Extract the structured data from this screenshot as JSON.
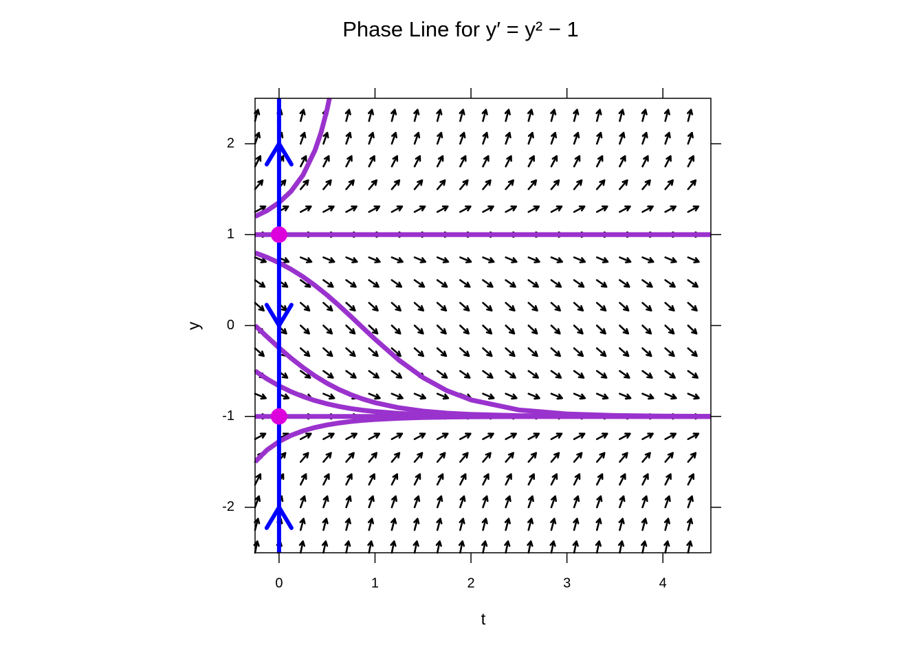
{
  "chart_data": {
    "type": "phase_portrait",
    "title": "Phase Line for y′ = y² − 1",
    "x_label": "t",
    "y_label": "y",
    "xlim": [
      -0.25,
      4.5
    ],
    "ylim": [
      -2.5,
      2.5
    ],
    "xticks": [
      0,
      1,
      2,
      3,
      4
    ],
    "yticks": [
      -2,
      -1,
      0,
      1,
      2
    ],
    "field": {
      "color": "#000000",
      "t": [
        -0.25,
        -0.0125,
        0.225,
        0.4625,
        0.7,
        0.9375,
        1.175,
        1.4125,
        1.65,
        1.8875,
        2.125,
        2.3625,
        2.6,
        2.8375,
        3.075,
        3.3125,
        3.55,
        3.7875,
        4.025,
        4.2625
      ],
      "y": [
        -2.5,
        -2.25,
        -2,
        -1.75,
        -1.5,
        -1.25,
        -1,
        -0.75,
        -0.5,
        -0.25,
        0,
        0.25,
        0.5,
        0.75,
        1,
        1.25,
        1.5,
        1.75,
        2,
        2.25
      ],
      "slopes": [
        5.25,
        4.0625,
        3,
        2.0625,
        1.25,
        0.5625,
        0,
        -0.4375,
        -0.75,
        -0.9375,
        -1,
        -0.9375,
        -0.75,
        -0.4375,
        0,
        0.5625,
        1.25,
        2.0625,
        3,
        4.0625
      ]
    },
    "series": [
      {
        "color": "#9A32CD",
        "x": [
          -0.25,
          -0.125,
          0,
          0.125,
          0.25,
          0.375,
          0.4375,
          0.5,
          0.525
        ],
        "values": [
          1.2,
          1.2643,
          1.3526,
          1.4766,
          1.6565,
          1.9295,
          2.1228,
          2.3751,
          2.5
        ]
      },
      {
        "color": "#9A32CD",
        "x": [
          -0.25,
          4.5
        ],
        "values": [
          1,
          1
        ]
      },
      {
        "color": "#9A32CD",
        "x": [
          -0.25,
          -0.125,
          0,
          0.125,
          0.25,
          0.375,
          0.5,
          0.625,
          0.75,
          0.875,
          1,
          1.25,
          1.5,
          1.75,
          2,
          2.5,
          3,
          3.5,
          4,
          4.5
        ],
        "values": [
          0.8,
          0.7503,
          0.6903,
          0.6191,
          0.5361,
          0.4411,
          0.3351,
          0.22,
          0.0983,
          -0.0264,
          -0.1502,
          -0.3811,
          -0.5726,
          -0.717,
          -0.8182,
          -0.929,
          -0.9733,
          -0.9901,
          -0.9963,
          -0.9987
        ]
      },
      {
        "color": "#9A32CD",
        "x": [
          -0.25,
          -0.125,
          0,
          0.125,
          0.25,
          0.375,
          0.5,
          0.625,
          0.75,
          0.875,
          1,
          1.25,
          1.5,
          1.75,
          2,
          2.5,
          3,
          3.5,
          4,
          4.5
        ],
        "values": [
          0,
          -0.1244,
          -0.2449,
          -0.3584,
          -0.4621,
          -0.5546,
          -0.6351,
          -0.7039,
          -0.7616,
          -0.8093,
          -0.8483,
          -0.9051,
          -0.9414,
          -0.964,
          -0.978,
          -0.9918,
          -0.997,
          -0.9989,
          -0.9996,
          -0.9999
        ]
      },
      {
        "color": "#9A32CD",
        "x": [
          -0.25,
          -0.125,
          0,
          0.125,
          0.25,
          0.375,
          0.5,
          0.625,
          0.75,
          0.875,
          1,
          1.25,
          1.5,
          1.75,
          2,
          2.5,
          3,
          3.5,
          4,
          4.5
        ],
        "values": [
          -0.5,
          -0.5878,
          -0.6636,
          -0.7279,
          -0.7815,
          -0.8256,
          -0.8615,
          -0.8905,
          -0.9137,
          -0.9321,
          -0.9467,
          -0.9674,
          -0.9801,
          -0.9879,
          -0.9926,
          -0.9973,
          -0.999,
          -0.9996,
          -0.9999,
          -1
        ]
      },
      {
        "color": "#9A32CD",
        "x": [
          -0.25,
          4.5
        ],
        "values": [
          -1,
          -1
        ]
      },
      {
        "color": "#9A32CD",
        "x": [
          -0.25,
          -0.125,
          0,
          0.125,
          0.25,
          0.375,
          0.5,
          0.625,
          0.75,
          0.875,
          1,
          1.25,
          1.5,
          1.75,
          2,
          2.5,
          3,
          3.5,
          4,
          4.5
        ],
        "values": [
          -1.5,
          -1.369,
          -1.2761,
          -1.2087,
          -1.1588,
          -1.1216,
          -1.0934,
          -1.072,
          -1.0556,
          -1.0431,
          -1.0334,
          -1.0201,
          -1.0122,
          -1.0074,
          -1.0045,
          -1.0016,
          -1.0006,
          -1.0002,
          -1.0001,
          -1
        ]
      }
    ],
    "phase_line": {
      "color": "#0000FF",
      "t": 0,
      "arrows": [
        {
          "y": 2,
          "direction": "up"
        },
        {
          "y": 0,
          "direction": "down"
        },
        {
          "y": -2,
          "direction": "up"
        }
      ]
    },
    "equilibria": {
      "color": "#DD00DD",
      "t": [
        0,
        0
      ],
      "values": [
        1,
        -1
      ]
    }
  }
}
